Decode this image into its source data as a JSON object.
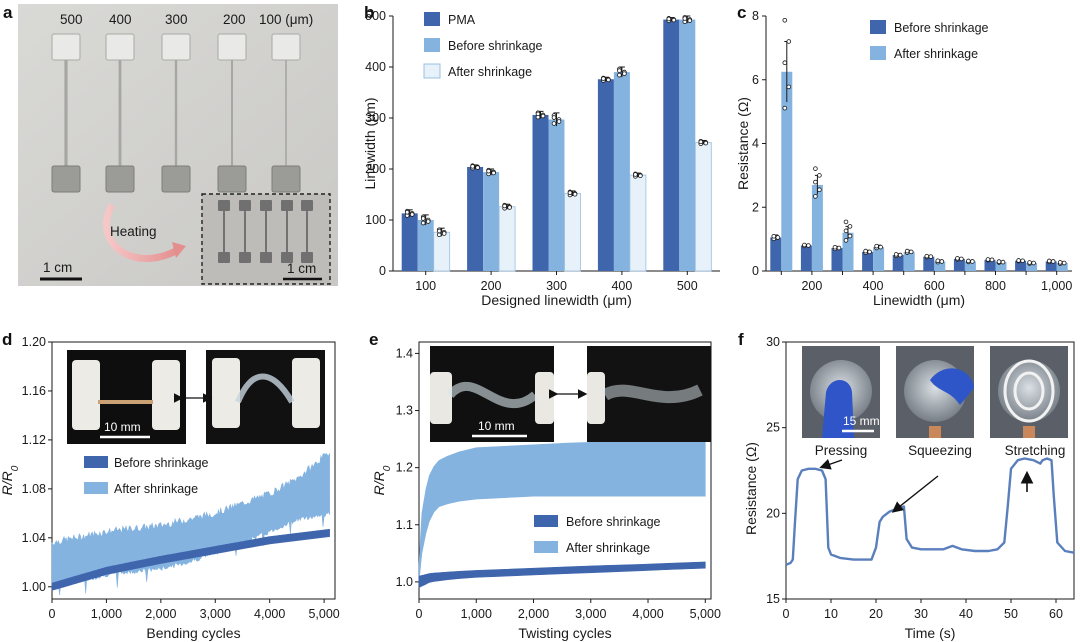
{
  "colors": {
    "dark": "#3f65ad",
    "mid": "#84b3e0",
    "light": "#e6f1fa",
    "pink": "#e8a0a0"
  },
  "panels": {
    "a": {
      "label": "a",
      "widths": [
        "500",
        "400",
        "300",
        "200",
        "100 (μm)"
      ],
      "heating": "Heating",
      "scale_main": "1 cm",
      "scale_inset": "1 cm"
    },
    "d": {
      "label": "d",
      "photo_scale": "10 mm"
    },
    "e": {
      "label": "e",
      "photo_scale": "10 mm"
    },
    "f": {
      "label": "f",
      "photo_scale": "15 mm"
    }
  },
  "chart_data": [
    {
      "id": "b",
      "label": "b",
      "type": "bar",
      "xlabel": "Designed linewidth (μm)",
      "ylabel": "Linewidth (μm)",
      "ylim": [
        0,
        500
      ],
      "yticks": [
        0,
        100,
        200,
        300,
        400,
        500
      ],
      "categories": [
        "100",
        "200",
        "300",
        "400",
        "500"
      ],
      "legend_position": "top-left",
      "series": [
        {
          "name": "PMA",
          "values": [
            113,
            204,
            306,
            376,
            493
          ],
          "errors": [
            7,
            4,
            7,
            4,
            4
          ]
        },
        {
          "name": "Before shrinkage",
          "values": [
            100,
            194,
            297,
            390,
            493
          ],
          "errors": [
            10,
            6,
            13,
            10,
            7
          ]
        },
        {
          "name": "After shrinkage",
          "values": [
            76,
            126,
            152,
            188,
            252
          ],
          "errors": [
            8,
            5,
            5,
            4,
            4
          ]
        }
      ]
    },
    {
      "id": "c",
      "label": "c",
      "type": "bar",
      "xlabel": "Linewidth (μm)",
      "ylabel": "Resistance (Ω)",
      "ylim": [
        0,
        8
      ],
      "yticks": [
        0,
        2,
        4,
        6,
        8
      ],
      "xtick_labels": [
        "200",
        "400",
        "600",
        "800",
        "1,000"
      ],
      "categories": [
        "100",
        "200",
        "300",
        "400",
        "500",
        "600",
        "700",
        "800",
        "900",
        "1,000"
      ],
      "legend_position": "top-right",
      "series": [
        {
          "name": "Before shrinkage",
          "values": [
            1.05,
            0.8,
            0.72,
            0.6,
            0.5,
            0.45,
            0.38,
            0.35,
            0.32,
            0.3
          ],
          "errors": [
            0.08,
            0.03,
            0.05,
            0.05,
            0.04,
            0.03,
            0.03,
            0.02,
            0.02,
            0.03
          ]
        },
        {
          "name": "After shrinkage",
          "values": [
            6.25,
            2.7,
            1.2,
            0.75,
            0.6,
            0.3,
            0.3,
            0.28,
            0.25,
            0.25
          ],
          "errors": [
            0.95,
            0.3,
            0.2,
            0.06,
            0.05,
            0.04,
            0.03,
            0.03,
            0.03,
            0.04
          ]
        }
      ]
    },
    {
      "id": "d",
      "label": "d",
      "type": "line",
      "xlabel": "Bending cycles",
      "ylabel": "R/R0",
      "xlim": [
        0,
        5200
      ],
      "ylim": [
        0.99,
        1.2
      ],
      "xticks": [
        0,
        1000,
        2000,
        3000,
        4000,
        5000
      ],
      "xtick_labels": [
        "0",
        "1,000",
        "2,000",
        "3,000",
        "4,000",
        "5,000"
      ],
      "yticks": [
        1.0,
        1.04,
        1.08,
        1.12,
        1.16,
        1.2
      ],
      "ytick_labels": [
        "1.00",
        "1.04",
        "1.08",
        "1.12",
        "1.16",
        "1.20"
      ],
      "series": [
        {
          "name": "Before shrinkage",
          "x": [
            0,
            1000,
            2000,
            3000,
            4000,
            5100
          ],
          "y": [
            1.0,
            1.013,
            1.022,
            1.03,
            1.038,
            1.044
          ],
          "band": 0.003
        },
        {
          "name": "After shrinkage",
          "x": [
            0,
            1000,
            2000,
            2500,
            3000,
            3500,
            4000,
            4500,
            5100
          ],
          "y_low": [
            1.0,
            1.01,
            1.015,
            1.02,
            1.028,
            1.036,
            1.045,
            1.055,
            1.06
          ],
          "y_high": [
            1.036,
            1.045,
            1.05,
            1.055,
            1.06,
            1.068,
            1.076,
            1.088,
            1.11
          ]
        }
      ]
    },
    {
      "id": "e",
      "label": "e",
      "type": "line",
      "xlabel": "Twisting cycles",
      "ylabel": "R/R0",
      "xlim": [
        0,
        5100
      ],
      "ylim": [
        0.97,
        1.42
      ],
      "xticks": [
        0,
        1000,
        2000,
        3000,
        4000,
        5000
      ],
      "xtick_labels": [
        "0",
        "1,000",
        "2,000",
        "3,000",
        "4,000",
        "5,000"
      ],
      "yticks": [
        1.0,
        1.1,
        1.2,
        1.3,
        1.4
      ],
      "ytick_labels": [
        "1.0",
        "1.1",
        "1.2",
        "1.3",
        "1.4"
      ],
      "series": [
        {
          "name": "Before shrinkage",
          "x": [
            0,
            200,
            600,
            1000,
            2000,
            3000,
            4000,
            5000
          ],
          "y_low": [
            0.99,
            1.0,
            1.005,
            1.008,
            1.012,
            1.016,
            1.02,
            1.024
          ],
          "y_high": [
            1.01,
            1.015,
            1.018,
            1.02,
            1.024,
            1.028,
            1.031,
            1.035
          ]
        },
        {
          "name": "After shrinkage",
          "x": [
            0,
            50,
            150,
            300,
            600,
            1000,
            2000,
            3000,
            4000,
            5000
          ],
          "y_low": [
            1.0,
            1.05,
            1.1,
            1.13,
            1.14,
            1.145,
            1.15,
            1.15,
            1.15,
            1.15
          ],
          "y_high": [
            1.03,
            1.12,
            1.18,
            1.21,
            1.225,
            1.235,
            1.24,
            1.245,
            1.245,
            1.245
          ]
        }
      ]
    },
    {
      "id": "f",
      "label": "f",
      "type": "line",
      "xlabel": "Time (s)",
      "ylabel": "Resistance (Ω)",
      "xlim": [
        0,
        64
      ],
      "ylim": [
        15,
        30
      ],
      "xticks": [
        0,
        10,
        20,
        30,
        40,
        50,
        60
      ],
      "yticks": [
        15,
        20,
        25,
        30
      ],
      "annotations": [
        "Pressing",
        "Squeezing",
        "Stretching"
      ],
      "series": [
        {
          "name": "",
          "x": [
            0,
            1,
            1.5,
            2,
            2.6,
            3.5,
            5,
            6.5,
            8,
            8.8,
            9.4,
            10,
            12,
            15,
            19,
            20,
            20.8,
            21.5,
            23,
            25,
            26.2,
            26.8,
            28,
            30,
            35,
            37,
            39,
            42,
            45,
            47,
            48.5,
            49.3,
            50,
            51.5,
            53,
            55,
            56.5,
            57,
            58,
            59,
            59.5,
            60.3,
            62,
            64
          ],
          "y": [
            17.0,
            17.1,
            17.3,
            19.5,
            22.0,
            22.5,
            22.6,
            22.6,
            22.5,
            22.0,
            18.0,
            17.6,
            17.4,
            17.3,
            17.3,
            18.0,
            19.5,
            19.8,
            20.1,
            20.3,
            20.4,
            18.5,
            18.0,
            17.9,
            17.9,
            18.1,
            17.9,
            17.8,
            17.8,
            17.9,
            18.3,
            20.5,
            22.6,
            23.1,
            23.2,
            23.1,
            22.9,
            23.1,
            23.2,
            23.1,
            21.0,
            18.3,
            17.8,
            17.7
          ]
        }
      ]
    }
  ]
}
